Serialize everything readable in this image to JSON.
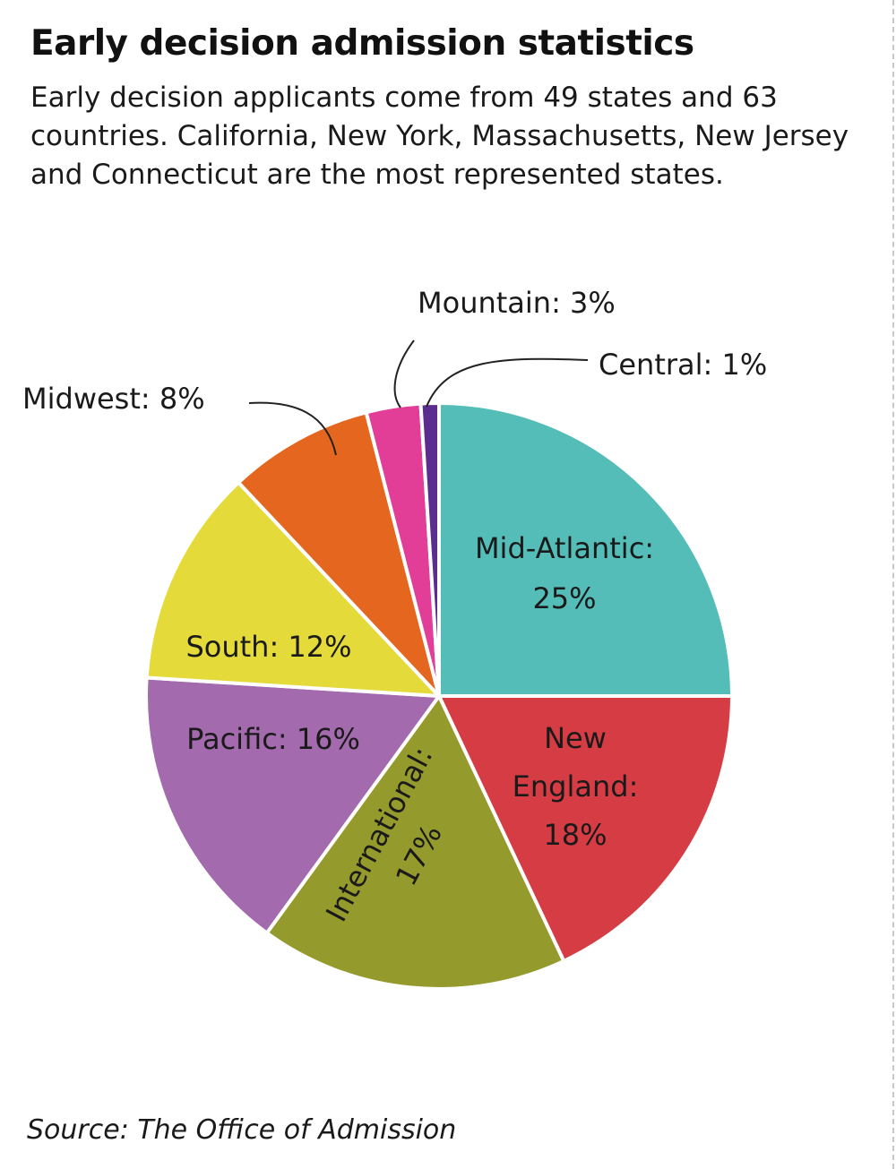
{
  "chart_data": {
    "type": "pie",
    "title": "Early decision admission statistics",
    "subtitle": "Early decision applicants come from 49 states and 63 countries. California, New York, Massachusetts, New Jersey and Connecticut are the most represented states.",
    "source": "Source: The Office of Admission",
    "start_angle_deg": 0,
    "direction": "clockwise",
    "slices": [
      {
        "label": "Mid-Atlantic",
        "value": 25,
        "display_lines": [
          "Mid-Atlantic:",
          "25%"
        ],
        "color": "#54bdb7",
        "label_placement": "inside"
      },
      {
        "label": "New England",
        "value": 18,
        "display_lines": [
          "New",
          "England:",
          "18%"
        ],
        "color": "#d63c44",
        "label_placement": "inside"
      },
      {
        "label": "International",
        "value": 17,
        "display_lines": [
          "International:",
          "17%"
        ],
        "color": "#949a2c",
        "label_placement": "inside-rotated"
      },
      {
        "label": "Pacific",
        "value": 16,
        "display_lines": [
          "Pacific: 16%"
        ],
        "color": "#a36aae",
        "label_placement": "inside"
      },
      {
        "label": "South",
        "value": 12,
        "display_lines": [
          "South: 12%"
        ],
        "color": "#e4db3b",
        "label_placement": "inside"
      },
      {
        "label": "Midwest",
        "value": 8,
        "display_lines": [
          "Midwest: 8%"
        ],
        "color": "#e5661f",
        "label_placement": "callout"
      },
      {
        "label": "Mountain",
        "value": 3,
        "display_lines": [
          "Mountain: 3%"
        ],
        "color": "#e33e97",
        "label_placement": "callout"
      },
      {
        "label": "Central",
        "value": 1,
        "display_lines": [
          "Central: 1%"
        ],
        "color": "#5b2d8e",
        "label_placement": "callout"
      }
    ]
  }
}
